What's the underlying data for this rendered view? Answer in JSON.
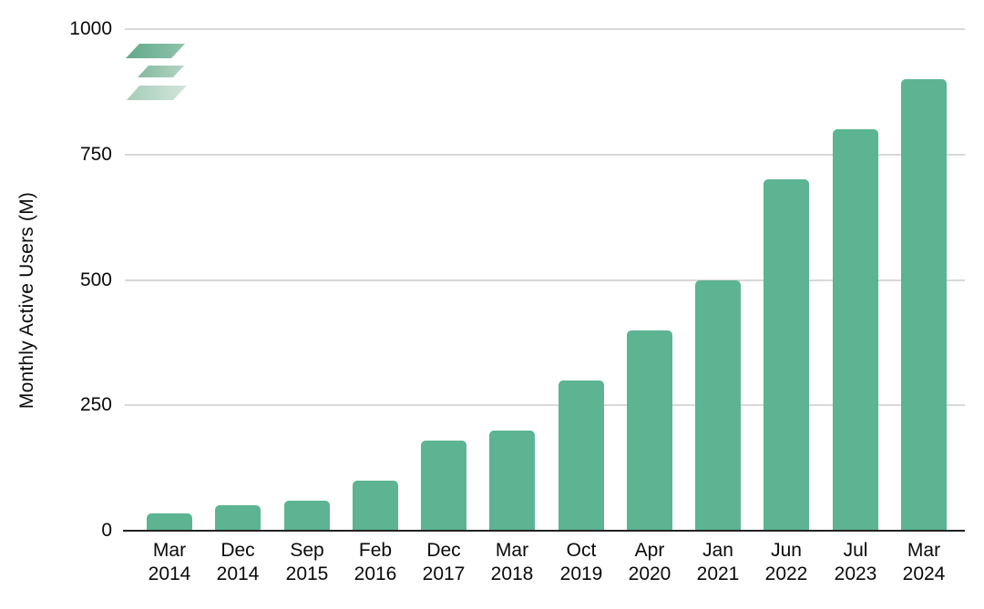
{
  "page": {
    "background": "#ffffff"
  },
  "logo": {
    "name": "stacked-layers-logo",
    "layer_colors": [
      {
        "from": "#63a98c",
        "to": "#8fc2a9"
      },
      {
        "from": "#82b99e",
        "to": "#b4d5c3"
      },
      {
        "from": "#a5cdba",
        "to": "#d2e5da"
      }
    ]
  },
  "chart_data": {
    "type": "bar",
    "categories": [
      "Mar 2014",
      "Dec 2014",
      "Sep 2015",
      "Feb 2016",
      "Dec 2017",
      "Mar 2018",
      "Oct 2019",
      "Apr 2020",
      "Jan 2021",
      "Jun 2022",
      "Jul 2023",
      "Mar 2024"
    ],
    "values": [
      35,
      50,
      60,
      100,
      180,
      200,
      300,
      400,
      500,
      700,
      800,
      900
    ],
    "ylabel": "Monthly Active Users (M)",
    "yticks": [
      0,
      250,
      500,
      750,
      1000
    ],
    "ylim": [
      0,
      1000
    ],
    "grid": true,
    "legend_position": "none",
    "bar_color": "#5cb492",
    "gridline_color": "#d8d8d8",
    "axis_line_color": "#212121",
    "text_color": "#0a0a0a"
  }
}
